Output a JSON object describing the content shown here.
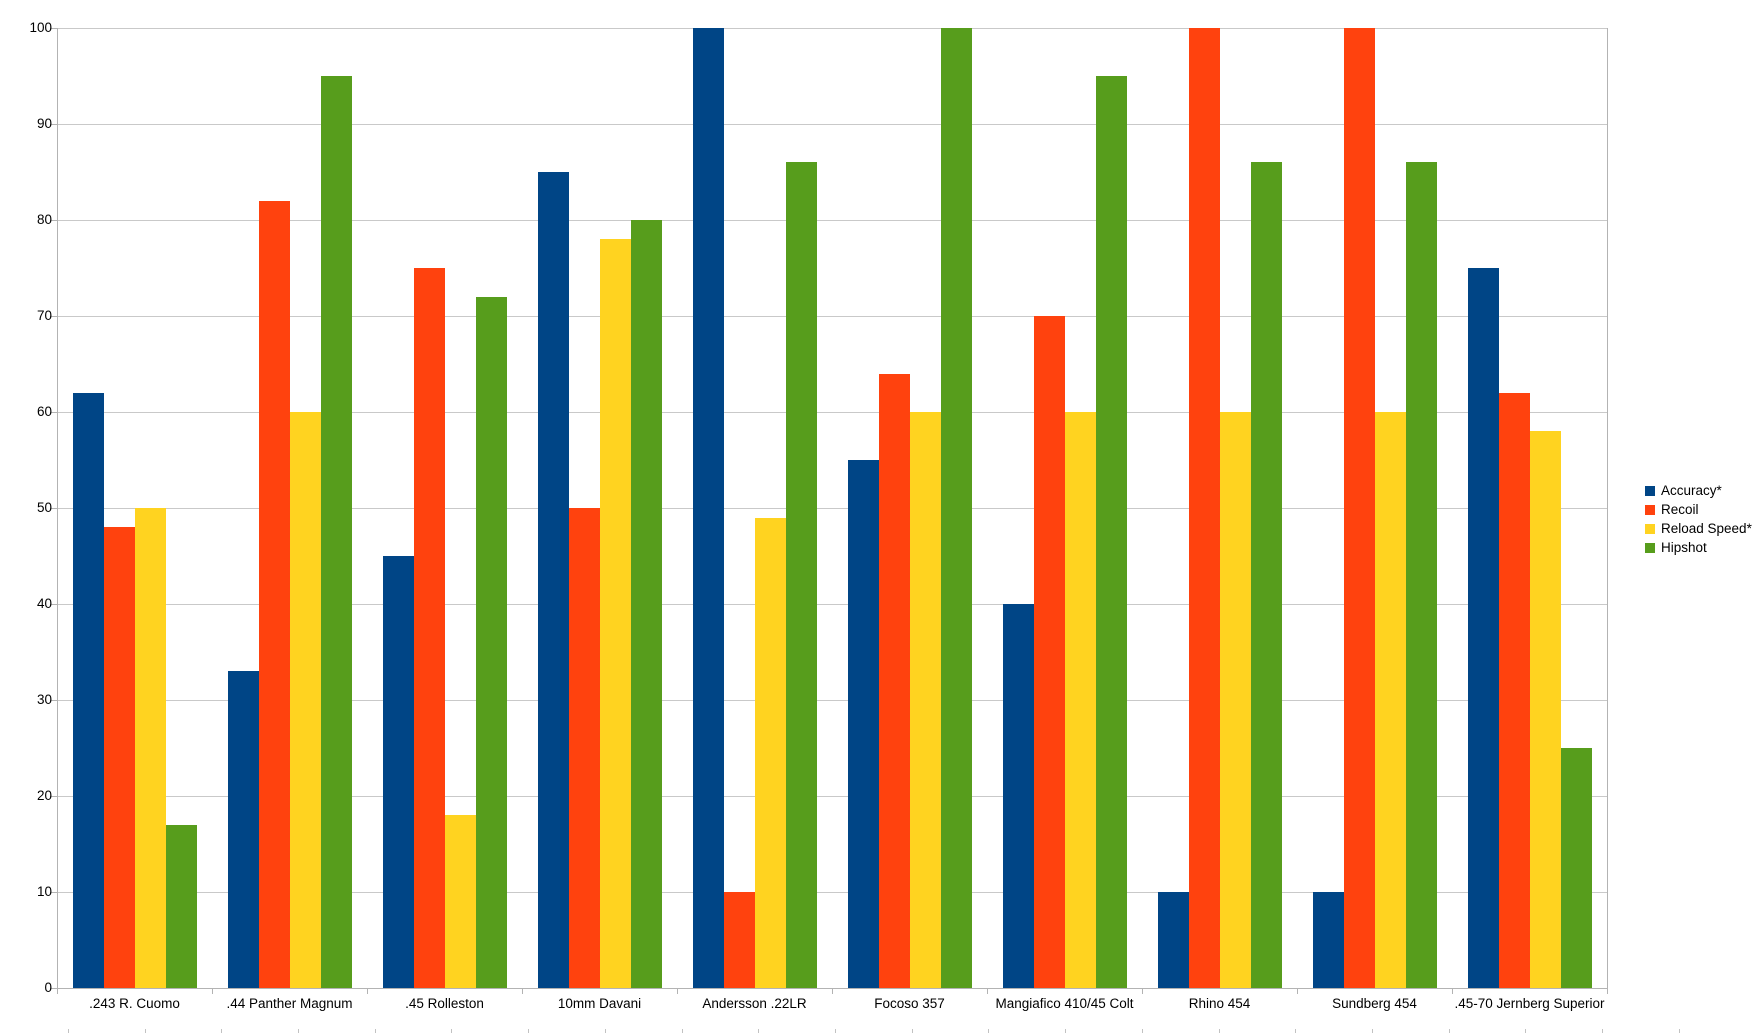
{
  "chart_data": {
    "type": "bar",
    "title": "",
    "categories": [
      ".243 R. Cuomo",
      ".44 Panther Magnum",
      ".45 Rolleston",
      "10mm Davani",
      "Andersson .22LR",
      "Focoso 357",
      "Mangiafico 410/45 Colt",
      "Rhino 454",
      "Sundberg 454",
      ".45-70 Jernberg Superior"
    ],
    "series": [
      {
        "name": "Accuracy*",
        "color": "#004586",
        "values": [
          62,
          33,
          45,
          85,
          100,
          55,
          40,
          10,
          10,
          75
        ]
      },
      {
        "name": "Recoil",
        "color": "#FF420E",
        "values": [
          48,
          82,
          75,
          50,
          10,
          64,
          70,
          100,
          100,
          62
        ]
      },
      {
        "name": "Reload Speed*",
        "color": "#FFD320",
        "values": [
          50,
          60,
          18,
          78,
          49,
          60,
          60,
          60,
          60,
          58
        ]
      },
      {
        "name": "Hipshot",
        "color": "#579D1C",
        "values": [
          17,
          95,
          72,
          80,
          86,
          100,
          95,
          86,
          86,
          25
        ]
      }
    ],
    "xlabel": "",
    "ylabel": "",
    "ylim": [
      0,
      100
    ],
    "y_tick_step": 10,
    "y_tick_labels": [
      "0",
      "10",
      "20",
      "30",
      "40",
      "50",
      "60",
      "70",
      "80",
      "90",
      "100"
    ],
    "grid": "horizontal",
    "legend_position": "right",
    "colors": {
      "background": "#FFFFFF",
      "gridline": "#C9C9C9",
      "axis": "#B3B3B3",
      "text": "#000000"
    }
  }
}
